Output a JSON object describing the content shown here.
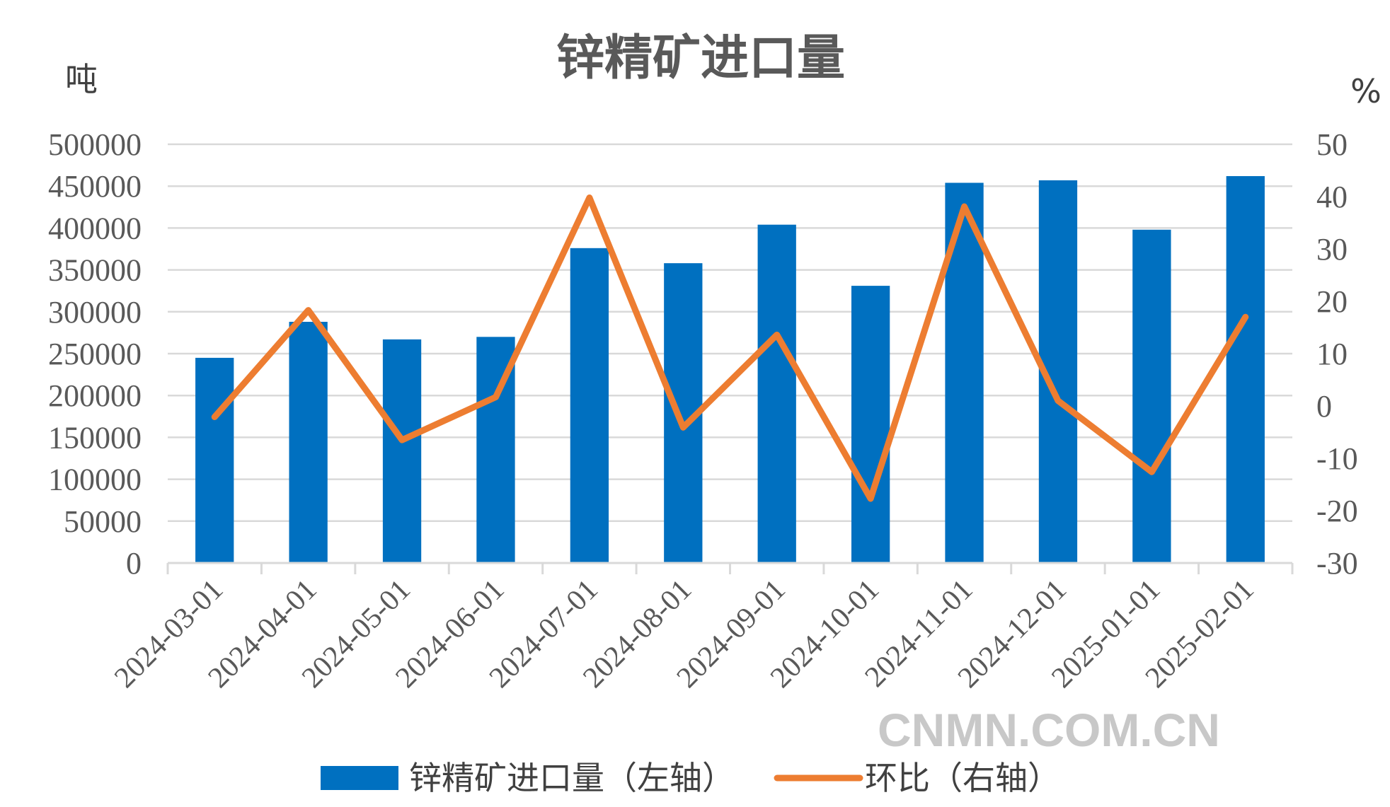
{
  "chart_data": {
    "type": "bar",
    "title": "锌精矿进口量",
    "ylabel_left": "吨",
    "ylabel_right": "%",
    "categories": [
      "2024-03-01",
      "2024-04-01",
      "2024-05-01",
      "2024-06-01",
      "2024-07-01",
      "2024-08-01",
      "2024-09-01",
      "2024-10-01",
      "2024-11-01",
      "2024-12-01",
      "2025-01-01",
      "2025-02-01"
    ],
    "series": [
      {
        "name": "锌精矿进口量（左轴）",
        "type": "bar",
        "axis": "left",
        "color": "#0070c0",
        "values": [
          245000,
          288000,
          267000,
          270000,
          376000,
          358000,
          404000,
          331000,
          454000,
          457000,
          398000,
          462000
        ]
      },
      {
        "name": "环比（右轴）",
        "type": "line",
        "axis": "right",
        "color": "#ed7d31",
        "values": [
          -2.1,
          18.3,
          -6.5,
          1.7,
          39.8,
          -4.1,
          13.6,
          -17.7,
          38.1,
          1.0,
          -12.6,
          17.0
        ]
      }
    ],
    "ylim_left": [
      0,
      500000
    ],
    "yticks_left": [
      "0",
      "50000",
      "100000",
      "150000",
      "200000",
      "250000",
      "300000",
      "350000",
      "400000",
      "450000",
      "500000"
    ],
    "ylim_right": [
      -30,
      50
    ],
    "yticks_right": [
      "-30",
      "-20",
      "-10",
      "0",
      "10",
      "20",
      "30",
      "40",
      "50"
    ],
    "grid": true,
    "legend_position": "bottom",
    "gridline_color": "#d9d9d9"
  },
  "watermark": "CNMN.COM.CN"
}
